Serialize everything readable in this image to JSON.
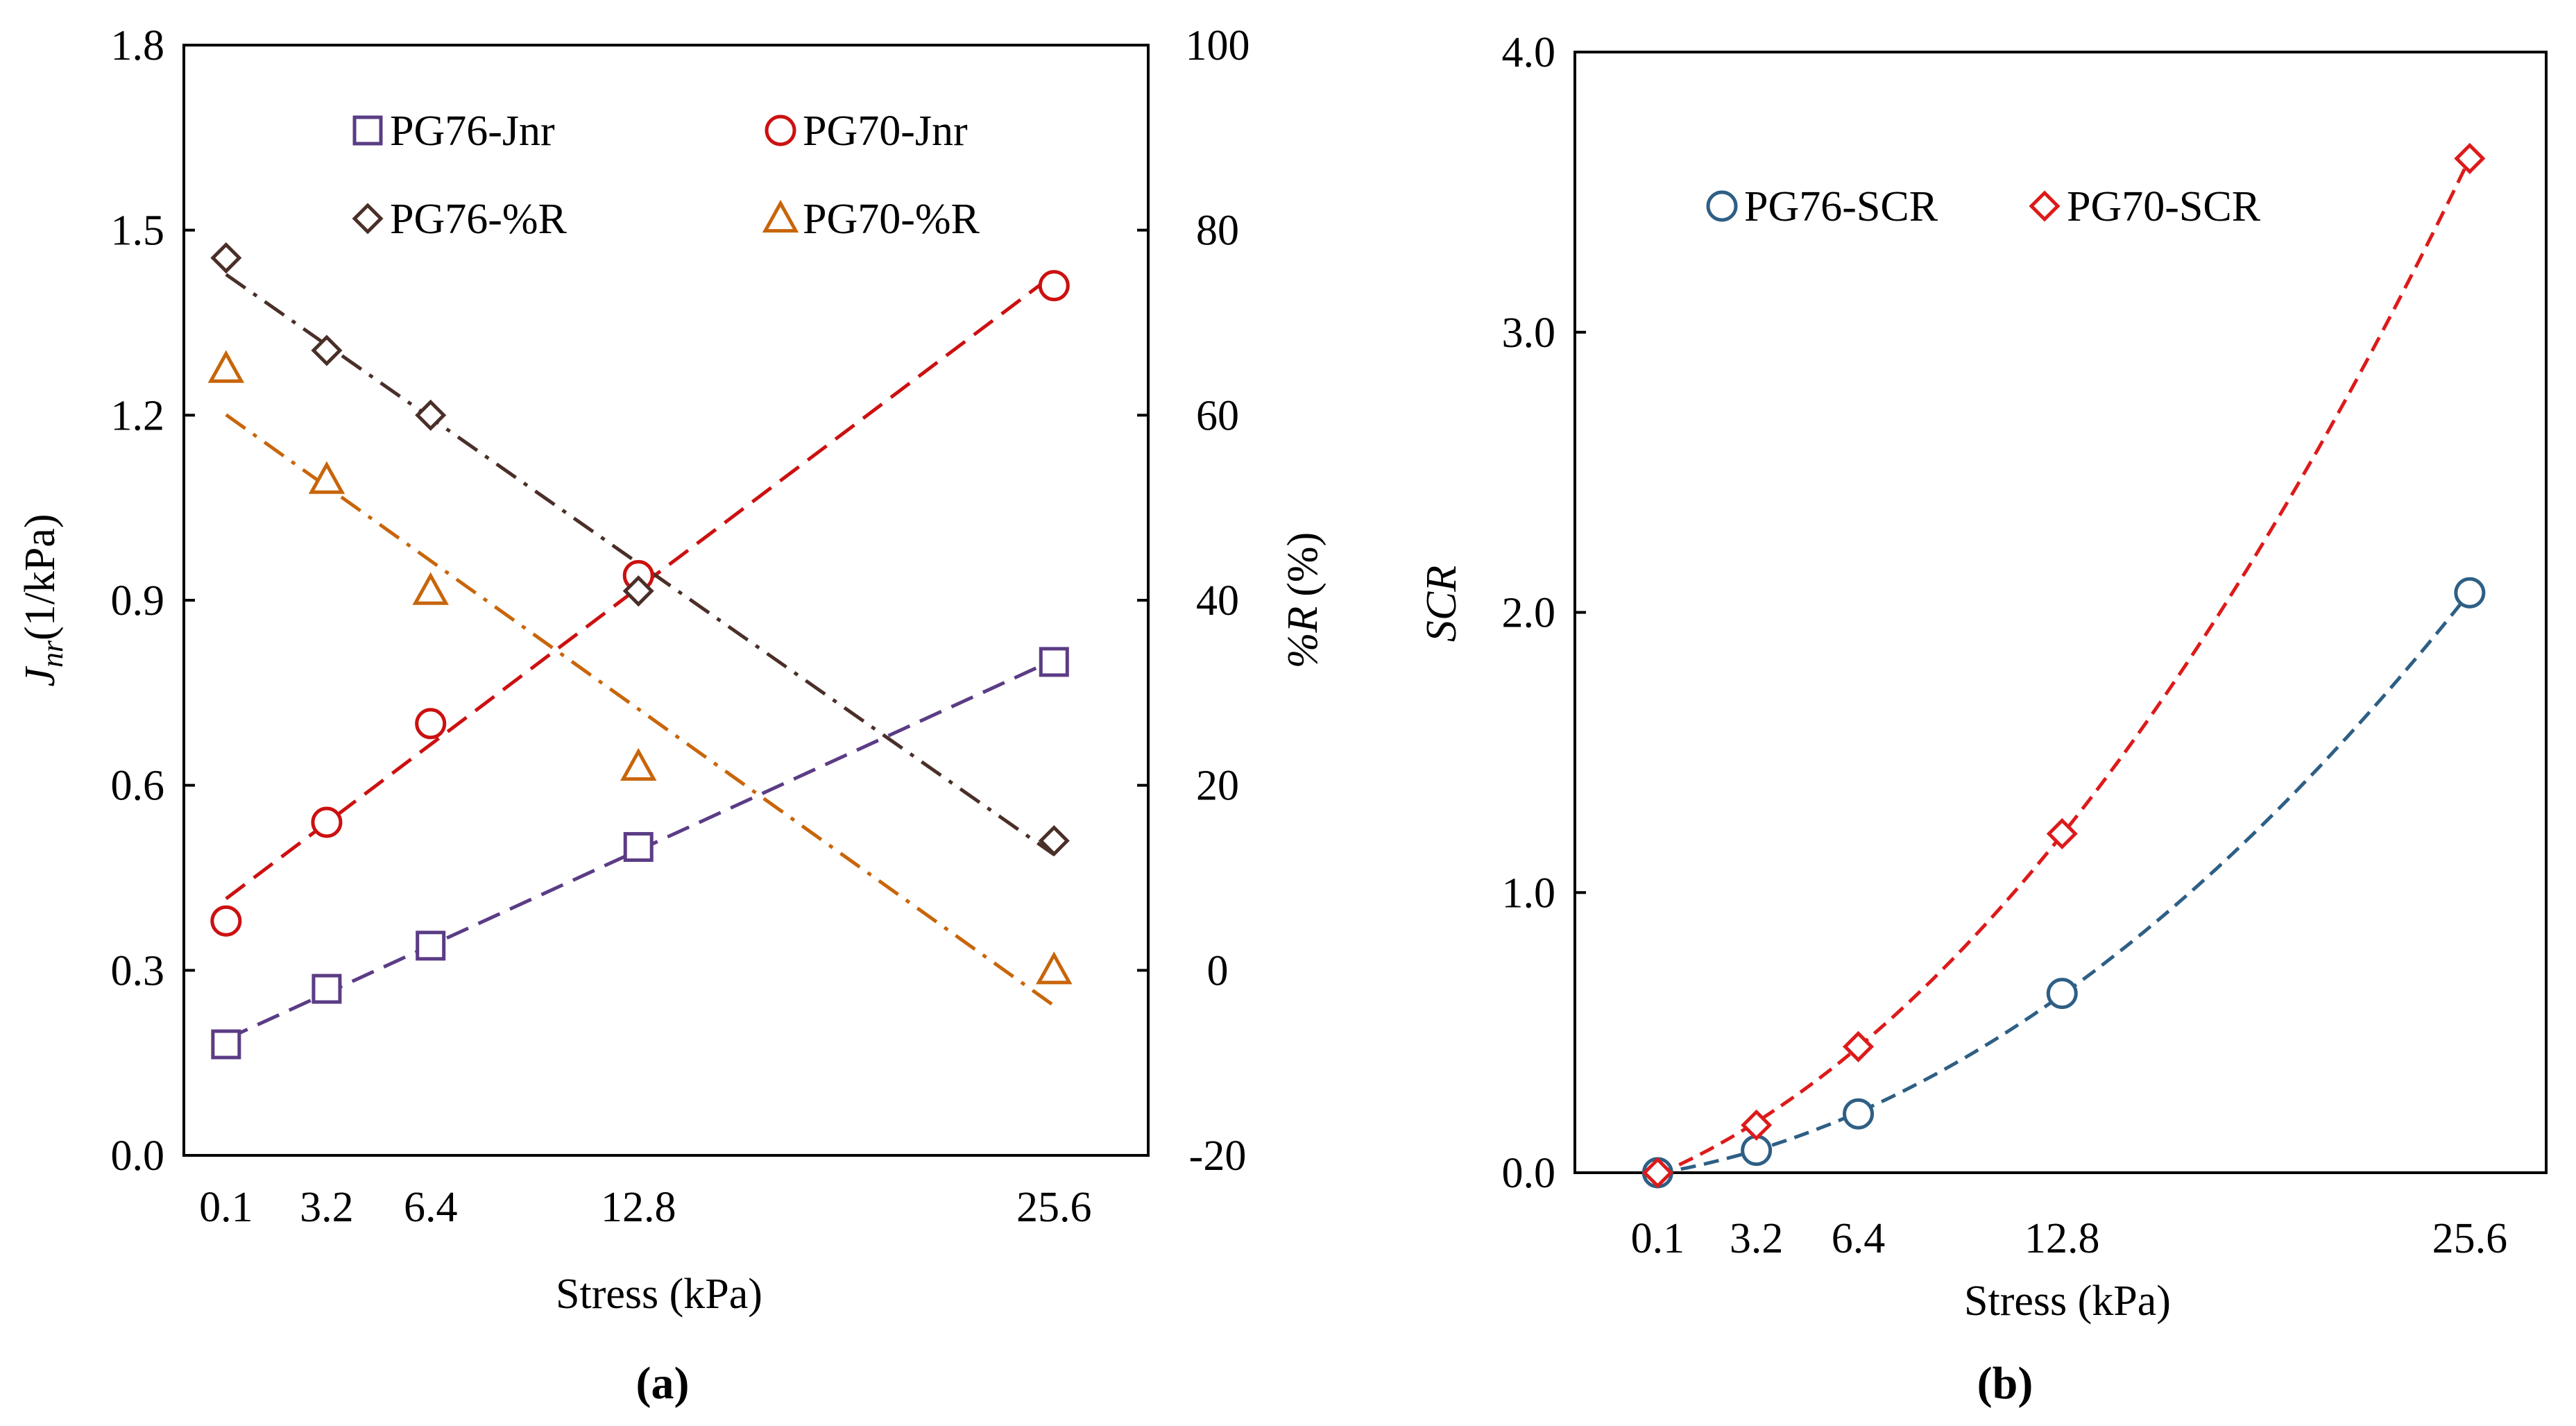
{
  "chart_data": [
    {
      "panel": "(a)",
      "type": "scatter",
      "x": [
        0.1,
        3.2,
        6.4,
        12.8,
        25.6
      ],
      "xtick_labels": [
        "0.1",
        "3.2",
        "6.4",
        "12.8",
        "25.6"
      ],
      "xlabel": "Stress (kPa)",
      "ylabel_main": "J",
      "ylabel_sub": "nr",
      "ylabel_unit": "(1/kPa)",
      "ylim": [
        0,
        1.8
      ],
      "yticks": [
        "0.0",
        "0.3",
        "0.6",
        "0.9",
        "1.2",
        "1.5",
        "1.8"
      ],
      "y2label_italic": "%R",
      "y2label_unit": "(%)",
      "y2lim": [
        -20,
        100
      ],
      "y2ticks": [
        "-20",
        "0",
        "20",
        "40",
        "60",
        "80",
        "100"
      ],
      "grid": false,
      "legend_placement": "top",
      "series": [
        {
          "name": "PG76-Jnr",
          "axis": "left",
          "marker": "square",
          "color": "#5b3c85",
          "trend": "dashed",
          "values": [
            0.18,
            0.27,
            0.34,
            0.5,
            0.8
          ]
        },
        {
          "name": "PG70-Jnr",
          "axis": "left",
          "marker": "circle",
          "color": "#cc1010",
          "trend": "dashed",
          "values": [
            0.38,
            0.54,
            0.7,
            0.94,
            1.41
          ]
        },
        {
          "name": "PG76-%R",
          "axis": "right",
          "marker": "diamond",
          "color": "#4a2f28",
          "trend": "dash-dot",
          "values": [
            77,
            67,
            60,
            41,
            14
          ]
        },
        {
          "name": "PG70-%R",
          "axis": "right",
          "marker": "triangle",
          "color": "#c8650a",
          "trend": "dash-dot",
          "values": [
            65,
            53,
            41,
            22,
            0
          ]
        }
      ]
    },
    {
      "panel": "(b)",
      "type": "scatter",
      "x": [
        0.1,
        3.2,
        6.4,
        12.8,
        25.6
      ],
      "xtick_labels": [
        "0.1",
        "3.2",
        "6.4",
        "12.8",
        "25.6"
      ],
      "xlabel": "Stress (kPa)",
      "ylabel": "SCR",
      "ylim": [
        0,
        4
      ],
      "yticks": [
        "0.0",
        "1.0",
        "2.0",
        "3.0",
        "4.0"
      ],
      "grid": false,
      "legend_placement": "top-left",
      "series": [
        {
          "name": "PG76-SCR",
          "marker": "circle",
          "color": "#2e5f85",
          "trend": "dashed",
          "values": [
            0,
            0.08,
            0.21,
            0.64,
            2.07
          ]
        },
        {
          "name": "PG70-SCR",
          "marker": "diamond",
          "color": "#dd1a1a",
          "trend": "dashed",
          "values": [
            0,
            0.17,
            0.45,
            1.21,
            3.62
          ]
        }
      ]
    }
  ]
}
